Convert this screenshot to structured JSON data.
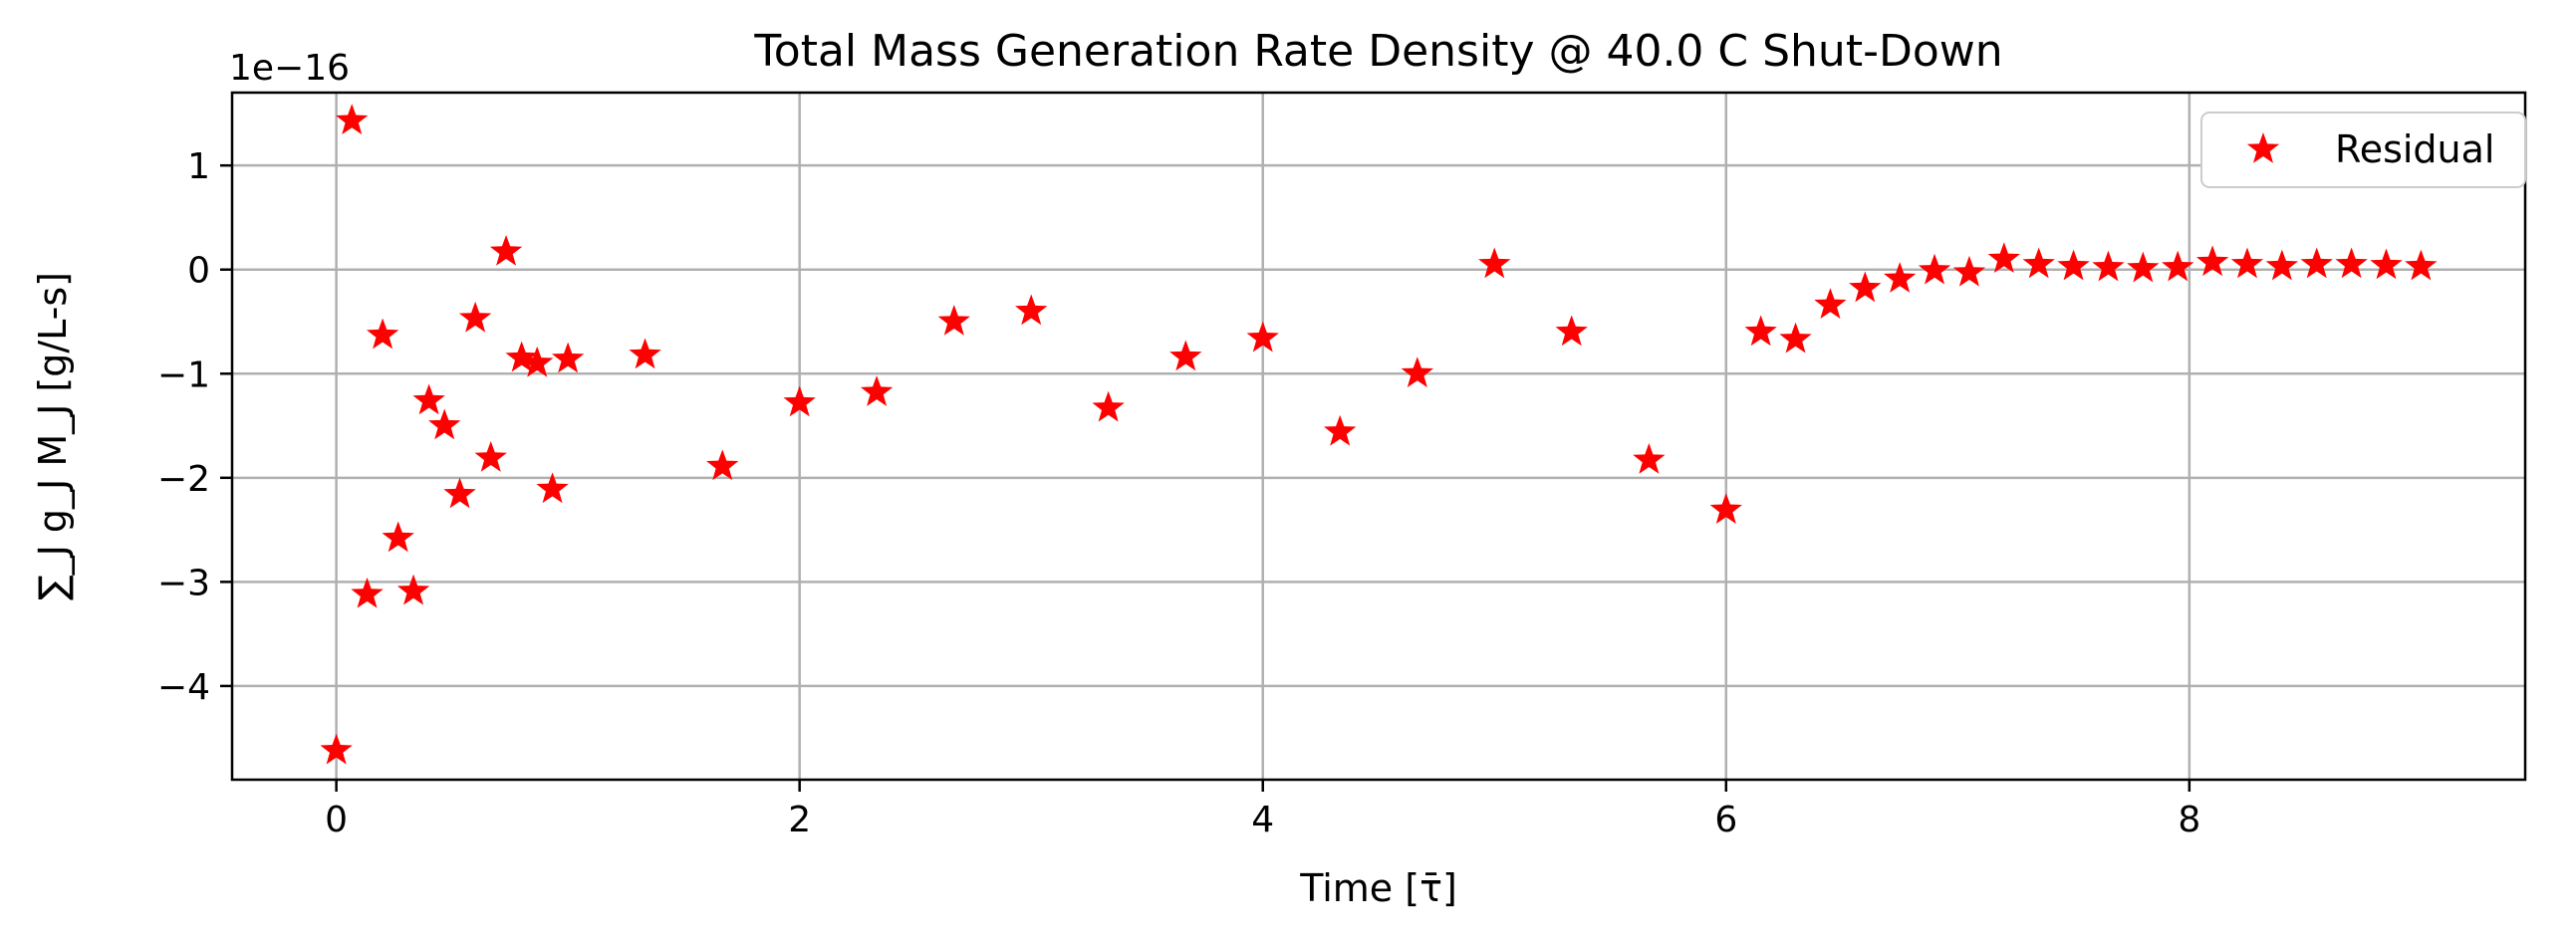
{
  "chart_data": {
    "type": "scatter",
    "title": "Total Mass Generation Rate Density @ 40.0 C Shut-Down",
    "xlabel": "Time [τ̄]",
    "ylabel": "∑_J g_J M_J [g/L-s]",
    "y_multiplier": "1e−16",
    "xlim": [
      -0.45,
      9.45
    ],
    "ylim": [
      -4.9,
      1.7
    ],
    "grid": true,
    "legend_position": "top-right",
    "x_ticks": [
      0,
      2,
      4,
      6,
      8
    ],
    "x_tick_labels": [
      "0",
      "2",
      "4",
      "6",
      "8"
    ],
    "y_ticks": [
      1,
      0,
      -1,
      -2,
      -3,
      -4
    ],
    "y_tick_labels": [
      "1",
      "0",
      "−1",
      "−2",
      "−3",
      "−4"
    ],
    "series": [
      {
        "name": "Residual",
        "color": "#ff0000",
        "marker": "star",
        "x": [
          0.0,
          0.067,
          0.133,
          0.2,
          0.267,
          0.333,
          0.4,
          0.467,
          0.533,
          0.6,
          0.667,
          0.733,
          0.8,
          0.867,
          0.933,
          1.0,
          1.333,
          1.667,
          2.0,
          2.333,
          2.667,
          3.0,
          3.333,
          3.667,
          4.0,
          4.333,
          4.667,
          5.0,
          5.333,
          5.667,
          6.0,
          6.15,
          6.3,
          6.45,
          6.6,
          6.75,
          6.9,
          7.05,
          7.2,
          7.35,
          7.5,
          7.65,
          7.8,
          7.95,
          8.1,
          8.25,
          8.4,
          8.55,
          8.7,
          8.85,
          9.0
        ],
        "y": [
          -4.62,
          1.43,
          -3.12,
          -0.63,
          -2.58,
          -3.09,
          -1.26,
          -1.5,
          -2.16,
          -0.47,
          -1.81,
          0.17,
          -0.85,
          -0.9,
          -2.11,
          -0.86,
          -0.82,
          -1.89,
          -1.28,
          -1.18,
          -0.5,
          -0.4,
          -1.33,
          -0.84,
          -0.66,
          -1.56,
          -1.0,
          0.05,
          -0.6,
          -1.83,
          -2.31,
          -0.6,
          -0.67,
          -0.34,
          -0.18,
          -0.09,
          -0.01,
          -0.03,
          0.1,
          0.05,
          0.03,
          0.02,
          0.01,
          0.02,
          0.07,
          0.05,
          0.03,
          0.05,
          0.05,
          0.04,
          0.03
        ]
      }
    ]
  }
}
